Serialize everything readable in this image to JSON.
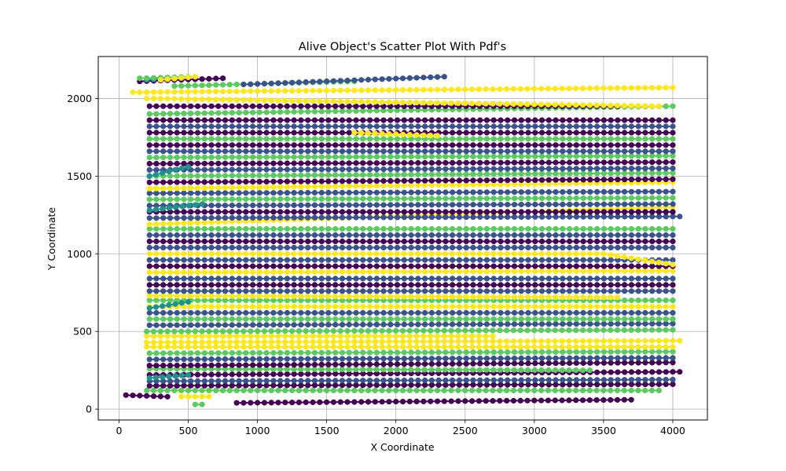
{
  "chart_data": {
    "type": "scatter",
    "title": "Alive Object's Scatter Plot With Pdf's",
    "xlabel": "X Coordinate",
    "ylabel": "Y Coordinate",
    "xlim": [
      -150,
      4250
    ],
    "ylim": [
      -70,
      2270
    ],
    "xticks": [
      0,
      500,
      1000,
      1500,
      2000,
      2500,
      3000,
      3500,
      4000
    ],
    "yticks": [
      0,
      500,
      1000,
      1500,
      2000
    ],
    "grid": true,
    "legend": "none",
    "colormap": [
      "#440154",
      "#3b528b",
      "#21918c",
      "#5ec962",
      "#fde725"
    ],
    "marker_spacing_x": 50,
    "tracks": [
      {
        "x0": 50,
        "x1": 350,
        "y0": 90,
        "y1": 80,
        "color": "#440154"
      },
      {
        "x0": 450,
        "x1": 650,
        "y0": 80,
        "y1": 80,
        "color": "#fde725"
      },
      {
        "x0": 550,
        "x1": 600,
        "y0": 30,
        "y1": 30,
        "color": "#5ec962"
      },
      {
        "x0": 850,
        "x1": 3700,
        "y0": 40,
        "y1": 60,
        "color": "#440154"
      },
      {
        "x0": 200,
        "x1": 3900,
        "y0": 120,
        "y1": 120,
        "color": "#5ec962"
      },
      {
        "x0": 220,
        "x1": 4000,
        "y0": 150,
        "y1": 160,
        "color": "#440154"
      },
      {
        "x0": 220,
        "x1": 4000,
        "y0": 180,
        "y1": 190,
        "color": "#3b528b"
      },
      {
        "x0": 220,
        "x1": 4050,
        "y0": 220,
        "y1": 240,
        "color": "#440154"
      },
      {
        "x0": 220,
        "x1": 3400,
        "y0": 260,
        "y1": 250,
        "color": "#5ec962"
      },
      {
        "x0": 220,
        "x1": 4000,
        "y0": 280,
        "y1": 300,
        "color": "#440154"
      },
      {
        "x0": 220,
        "x1": 4000,
        "y0": 320,
        "y1": 330,
        "color": "#3b528b"
      },
      {
        "x0": 220,
        "x1": 4000,
        "y0": 360,
        "y1": 370,
        "color": "#5ec962"
      },
      {
        "x0": 200,
        "x1": 4000,
        "y0": 400,
        "y1": 400,
        "color": "#fde725"
      },
      {
        "x0": 200,
        "x1": 4050,
        "y0": 430,
        "y1": 440,
        "color": "#fde725"
      },
      {
        "x0": 200,
        "x1": 2700,
        "y0": 470,
        "y1": 470,
        "color": "#fde725"
      },
      {
        "x0": 200,
        "x1": 4000,
        "y0": 500,
        "y1": 510,
        "color": "#5ec962"
      },
      {
        "x0": 220,
        "x1": 4000,
        "y0": 540,
        "y1": 550,
        "color": "#3b528b"
      },
      {
        "x0": 220,
        "x1": 4000,
        "y0": 580,
        "y1": 580,
        "color": "#5ec962"
      },
      {
        "x0": 220,
        "x1": 4000,
        "y0": 620,
        "y1": 620,
        "color": "#3b528b"
      },
      {
        "x0": 220,
        "x1": 4000,
        "y0": 660,
        "y1": 660,
        "color": "#fde725"
      },
      {
        "x0": 220,
        "x1": 4000,
        "y0": 700,
        "y1": 700,
        "color": "#5ec962"
      },
      {
        "x0": 220,
        "x1": 3600,
        "y0": 730,
        "y1": 720,
        "color": "#fde725"
      },
      {
        "x0": 220,
        "x1": 4000,
        "y0": 760,
        "y1": 760,
        "color": "#3b528b"
      },
      {
        "x0": 220,
        "x1": 4000,
        "y0": 800,
        "y1": 800,
        "color": "#440154"
      },
      {
        "x0": 220,
        "x1": 4000,
        "y0": 840,
        "y1": 840,
        "color": "#3b528b"
      },
      {
        "x0": 220,
        "x1": 4000,
        "y0": 880,
        "y1": 890,
        "color": "#fde725"
      },
      {
        "x0": 220,
        "x1": 4000,
        "y0": 920,
        "y1": 920,
        "color": "#440154"
      },
      {
        "x0": 220,
        "x1": 4000,
        "y0": 960,
        "y1": 960,
        "color": "#3b528b"
      },
      {
        "x0": 220,
        "x1": 3500,
        "y0": 1000,
        "y1": 1000,
        "color": "#fde725"
      },
      {
        "x0": 3500,
        "x1": 4000,
        "y0": 1000,
        "y1": 930,
        "color": "#fde725"
      },
      {
        "x0": 220,
        "x1": 4000,
        "y0": 1040,
        "y1": 1040,
        "color": "#3b528b"
      },
      {
        "x0": 220,
        "x1": 4000,
        "y0": 1080,
        "y1": 1080,
        "color": "#440154"
      },
      {
        "x0": 220,
        "x1": 4000,
        "y0": 1120,
        "y1": 1120,
        "color": "#3b528b"
      },
      {
        "x0": 220,
        "x1": 4000,
        "y0": 1160,
        "y1": 1160,
        "color": "#5ec962"
      },
      {
        "x0": 220,
        "x1": 4000,
        "y0": 1190,
        "y1": 1300,
        "color": "#fde725"
      },
      {
        "x0": 220,
        "x1": 4050,
        "y0": 1230,
        "y1": 1240,
        "color": "#3b528b"
      },
      {
        "x0": 220,
        "x1": 4000,
        "y0": 1270,
        "y1": 1270,
        "color": "#440154"
      },
      {
        "x0": 220,
        "x1": 4000,
        "y0": 1310,
        "y1": 1320,
        "color": "#3b528b"
      },
      {
        "x0": 220,
        "x1": 4000,
        "y0": 1350,
        "y1": 1360,
        "color": "#5ec962"
      },
      {
        "x0": 220,
        "x1": 4000,
        "y0": 1390,
        "y1": 1400,
        "color": "#3b528b"
      },
      {
        "x0": 220,
        "x1": 4000,
        "y0": 1420,
        "y1": 1460,
        "color": "#fde725"
      },
      {
        "x0": 220,
        "x1": 4000,
        "y0": 1460,
        "y1": 1480,
        "color": "#440154"
      },
      {
        "x0": 220,
        "x1": 4000,
        "y0": 1500,
        "y1": 1520,
        "color": "#5ec962"
      },
      {
        "x0": 220,
        "x1": 4000,
        "y0": 1540,
        "y1": 1550,
        "color": "#3b528b"
      },
      {
        "x0": 220,
        "x1": 4000,
        "y0": 1580,
        "y1": 1590,
        "color": "#440154"
      },
      {
        "x0": 220,
        "x1": 4000,
        "y0": 1620,
        "y1": 1630,
        "color": "#5ec962"
      },
      {
        "x0": 220,
        "x1": 4000,
        "y0": 1660,
        "y1": 1660,
        "color": "#3b528b"
      },
      {
        "x0": 220,
        "x1": 4000,
        "y0": 1700,
        "y1": 1700,
        "color": "#440154"
      },
      {
        "x0": 220,
        "x1": 4000,
        "y0": 1740,
        "y1": 1740,
        "color": "#5ec962"
      },
      {
        "x0": 220,
        "x1": 4000,
        "y0": 1780,
        "y1": 1780,
        "color": "#440154"
      },
      {
        "x0": 1700,
        "x1": 2300,
        "y0": 1780,
        "y1": 1760,
        "color": "#fde725"
      },
      {
        "x0": 220,
        "x1": 4000,
        "y0": 1820,
        "y1": 1820,
        "color": "#3b528b"
      },
      {
        "x0": 220,
        "x1": 4000,
        "y0": 1860,
        "y1": 1860,
        "color": "#440154"
      },
      {
        "x0": 220,
        "x1": 4000,
        "y0": 1900,
        "y1": 1950,
        "color": "#5ec962"
      },
      {
        "x0": 220,
        "x1": 3600,
        "y0": 1950,
        "y1": 1950,
        "color": "#440154"
      },
      {
        "x0": 200,
        "x1": 3900,
        "y0": 2000,
        "y1": 1950,
        "color": "#fde725"
      },
      {
        "x0": 100,
        "x1": 4000,
        "y0": 2040,
        "y1": 2070,
        "color": "#fde725"
      },
      {
        "x0": 400,
        "x1": 1700,
        "y0": 2080,
        "y1": 2110,
        "color": "#5ec962"
      },
      {
        "x0": 900,
        "x1": 2350,
        "y0": 2090,
        "y1": 2140,
        "color": "#3b528b"
      },
      {
        "x0": 150,
        "x1": 750,
        "y0": 2110,
        "y1": 2130,
        "color": "#440154"
      },
      {
        "x0": 200,
        "x1": 400,
        "y0": 2120,
        "y1": 2130,
        "color": "#21918c"
      },
      {
        "x0": 150,
        "x1": 550,
        "y0": 2130,
        "y1": 2140,
        "color": "#5ec962"
      },
      {
        "x0": 300,
        "x1": 550,
        "y0": 2120,
        "y1": 2140,
        "color": "#fde725"
      },
      {
        "x0": 220,
        "x1": 500,
        "y0": 1500,
        "y1": 1560,
        "color": "#21918c"
      },
      {
        "x0": 220,
        "x1": 600,
        "y0": 1280,
        "y1": 1320,
        "color": "#21918c"
      },
      {
        "x0": 220,
        "x1": 500,
        "y0": 200,
        "y1": 220,
        "color": "#21918c"
      },
      {
        "x0": 220,
        "x1": 500,
        "y0": 650,
        "y1": 690,
        "color": "#21918c"
      }
    ]
  }
}
